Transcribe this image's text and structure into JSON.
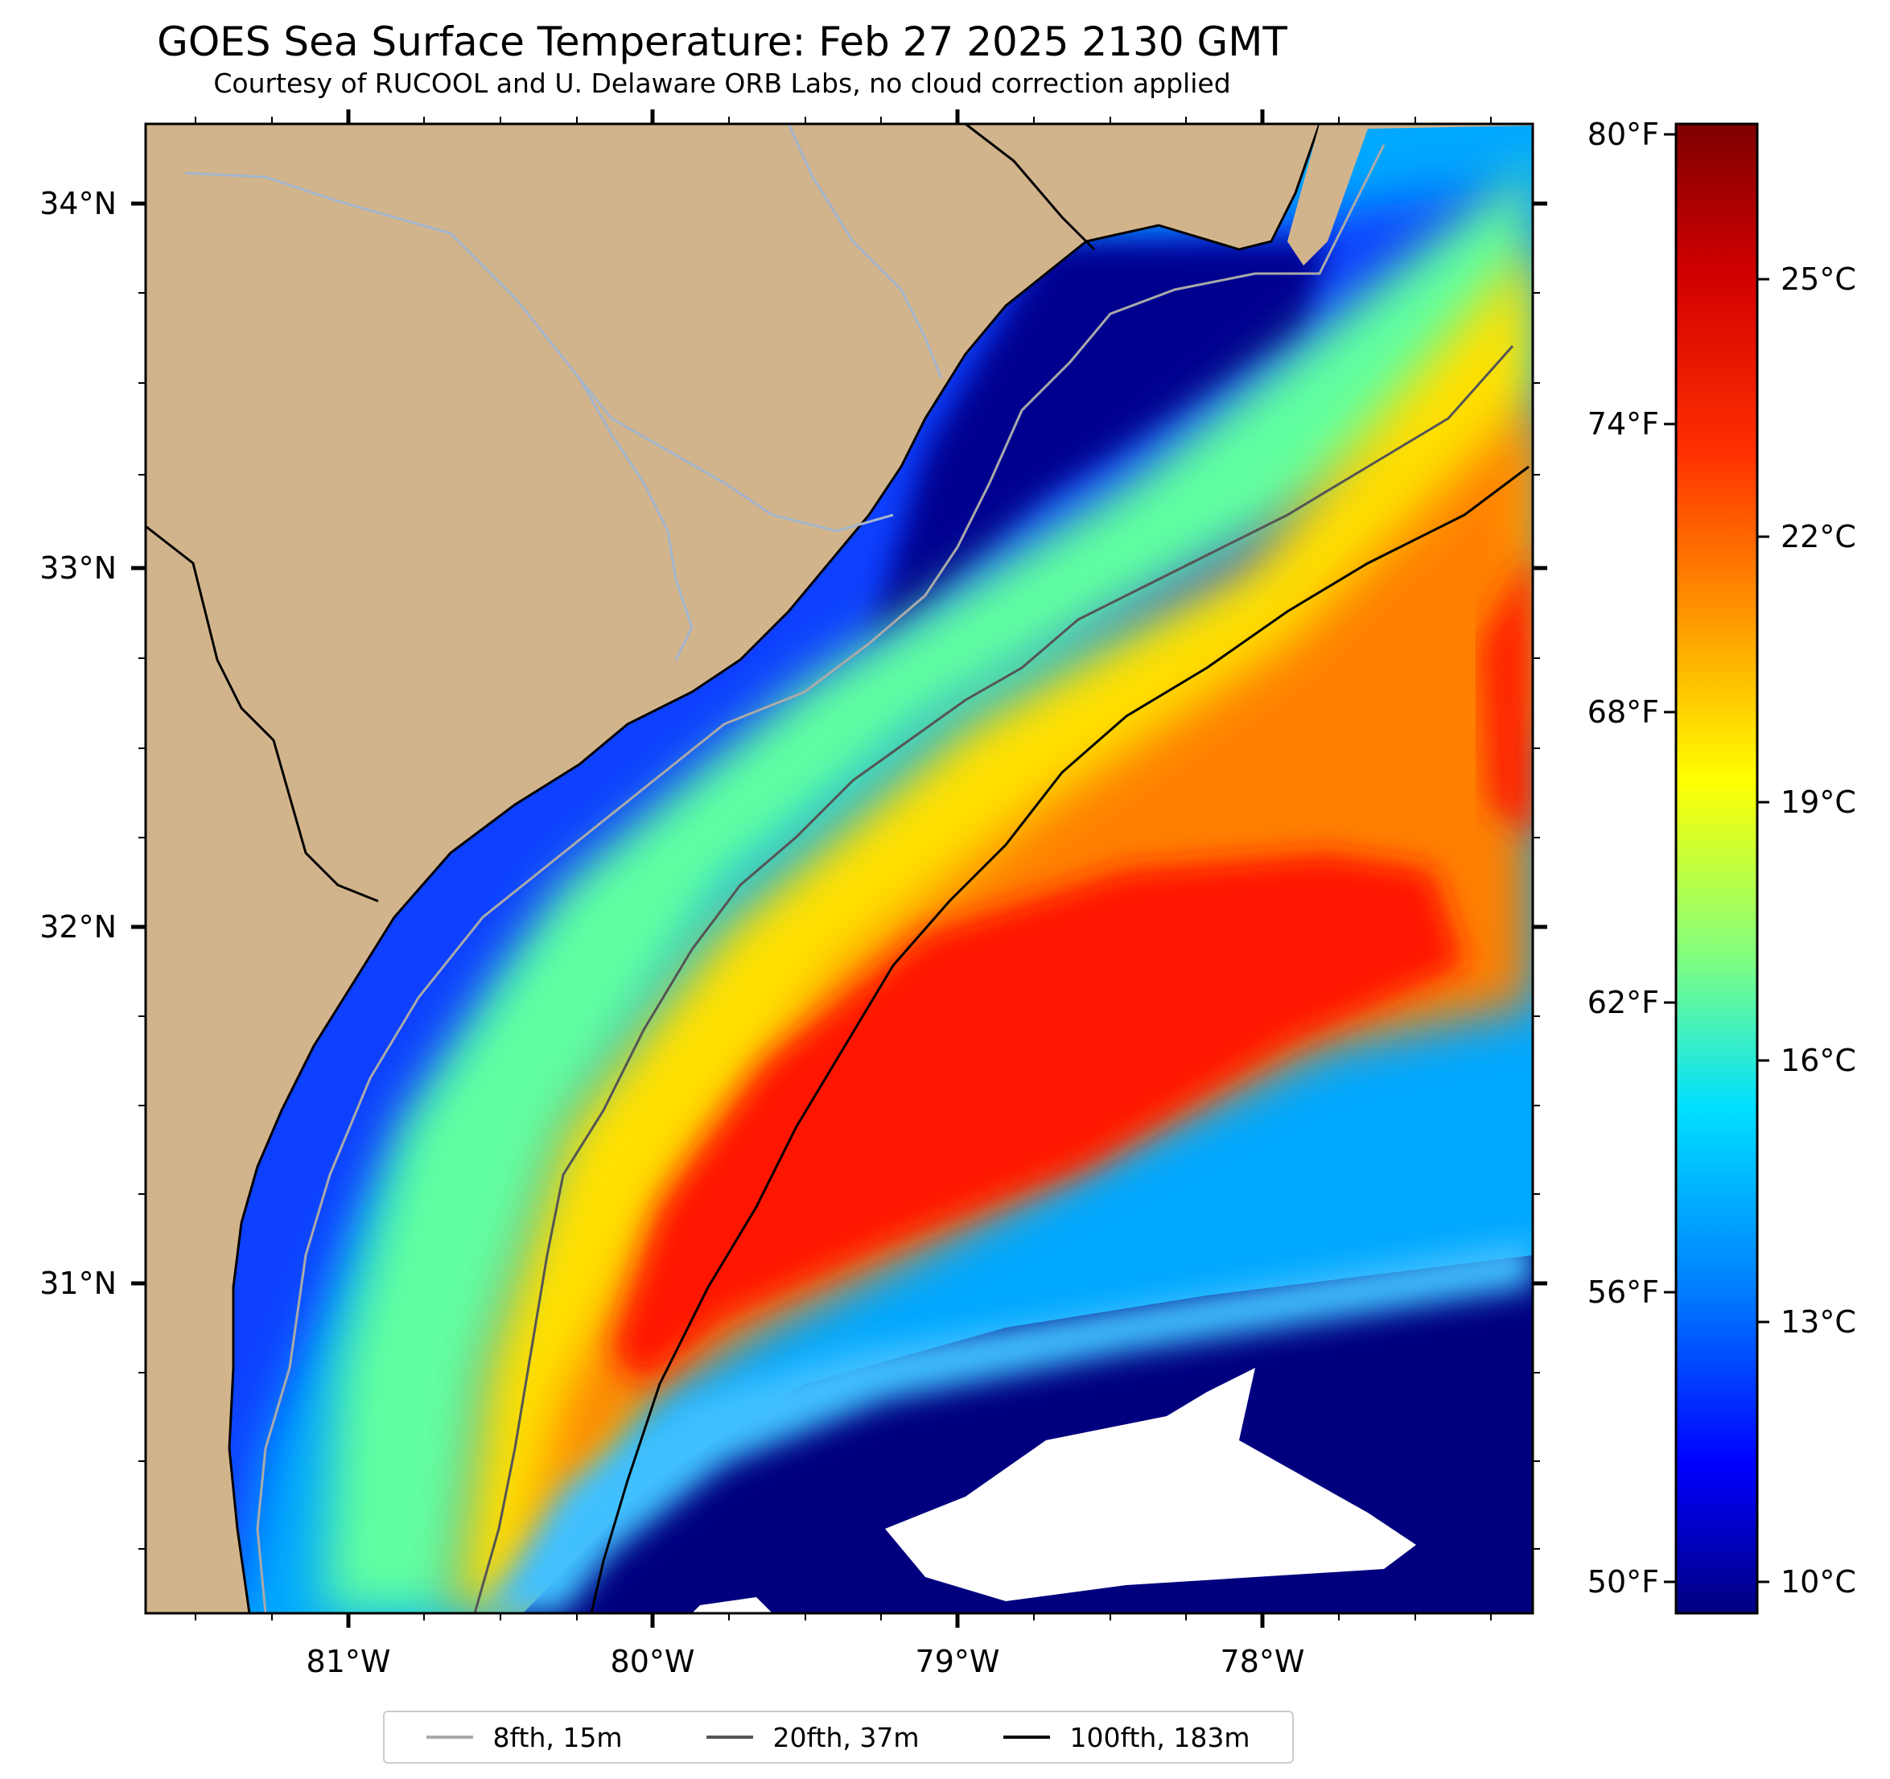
{
  "title": "GOES Sea Surface Temperature: Feb 27 2025 2130 GMT",
  "subtitle": "Courtesy of RUCOOL and U. Delaware ORB Labs, no cloud correction applied",
  "map": {
    "lat_labels": [
      "34°N",
      "33°N",
      "32°N",
      "31°N"
    ],
    "lon_labels": [
      "81°W",
      "80°W",
      "79°W",
      "78°W"
    ]
  },
  "colorbar": {
    "fahrenheit_labels": [
      "80°F",
      "74°F",
      "68°F",
      "62°F",
      "56°F",
      "50°F"
    ],
    "celsius_labels": [
      "25°C",
      "22°C",
      "19°C",
      "16°C",
      "13°C",
      "10°C"
    ],
    "colormap": "jet",
    "colors": [
      "#7f0000",
      "#ff0000",
      "#ffa000",
      "#ffff00",
      "#80ff80",
      "#00e0ff",
      "#0080ff",
      "#0000ff",
      "#00007f"
    ]
  },
  "colors": {
    "land": "#d2b48c",
    "river": "#a3b5cc",
    "cloud": "#ffffff"
  },
  "legend": [
    {
      "label": "8fth, 15m",
      "color": "#aaaaaa"
    },
    {
      "label": "20fth, 37m",
      "color": "#555555"
    },
    {
      "label": "100fth, 183m",
      "color": "#000000"
    }
  ]
}
